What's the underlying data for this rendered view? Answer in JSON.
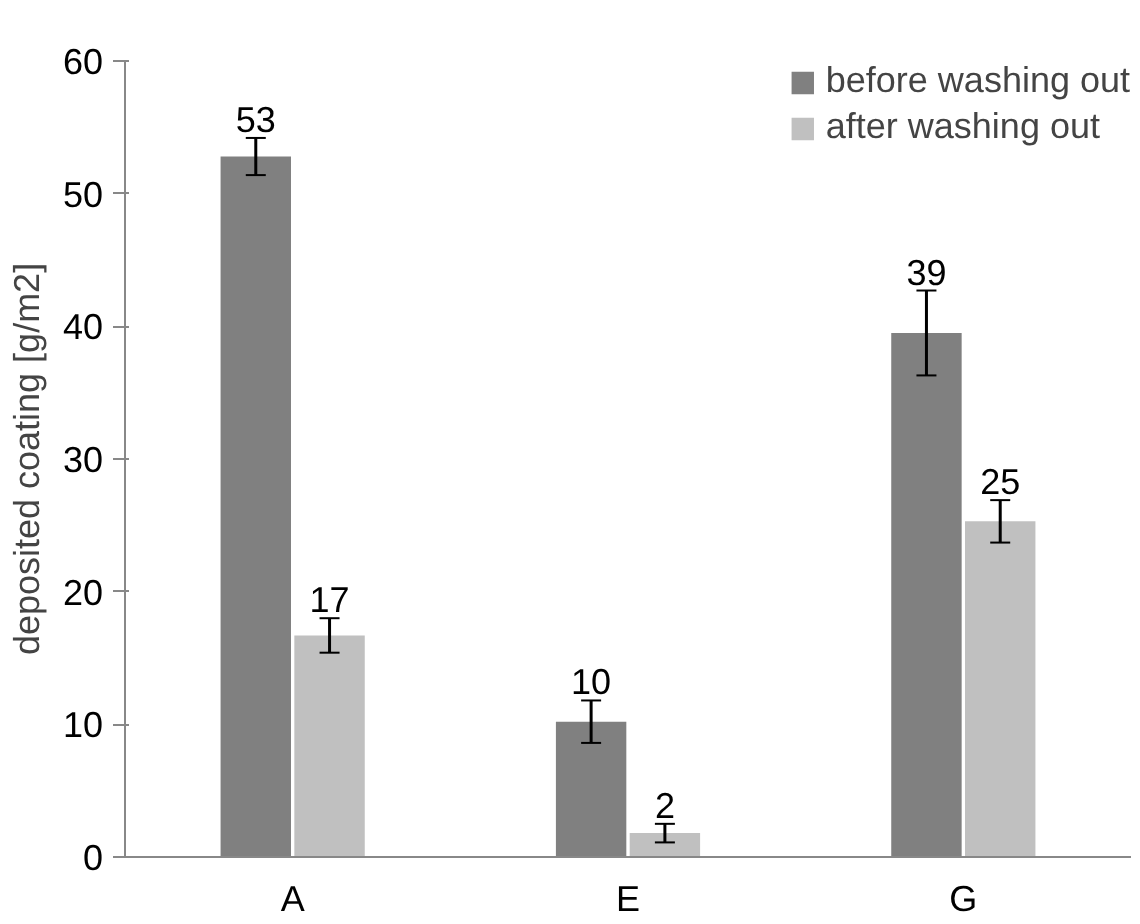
{
  "chart_data": {
    "type": "bar",
    "ylabel": "deposited coating [g/m2]",
    "categories": [
      "A",
      "E",
      "G"
    ],
    "series": [
      {
        "name": "before washing out",
        "color": "#808080",
        "values": [
          52.8,
          10.2,
          39.5
        ],
        "errors": [
          1.4,
          1.6,
          3.2
        ],
        "value_labels": [
          "53",
          "10",
          "39"
        ]
      },
      {
        "name": "after washing out",
        "color": "#c0c0c0",
        "values": [
          16.7,
          1.8,
          25.3
        ],
        "errors": [
          1.3,
          0.7,
          1.6
        ],
        "value_labels": [
          "17",
          "2",
          "25"
        ]
      }
    ],
    "ylim": [
      0,
      60
    ],
    "yticks": [
      0,
      10,
      20,
      30,
      40,
      50,
      60
    ],
    "grid": false,
    "legend": "top right"
  }
}
